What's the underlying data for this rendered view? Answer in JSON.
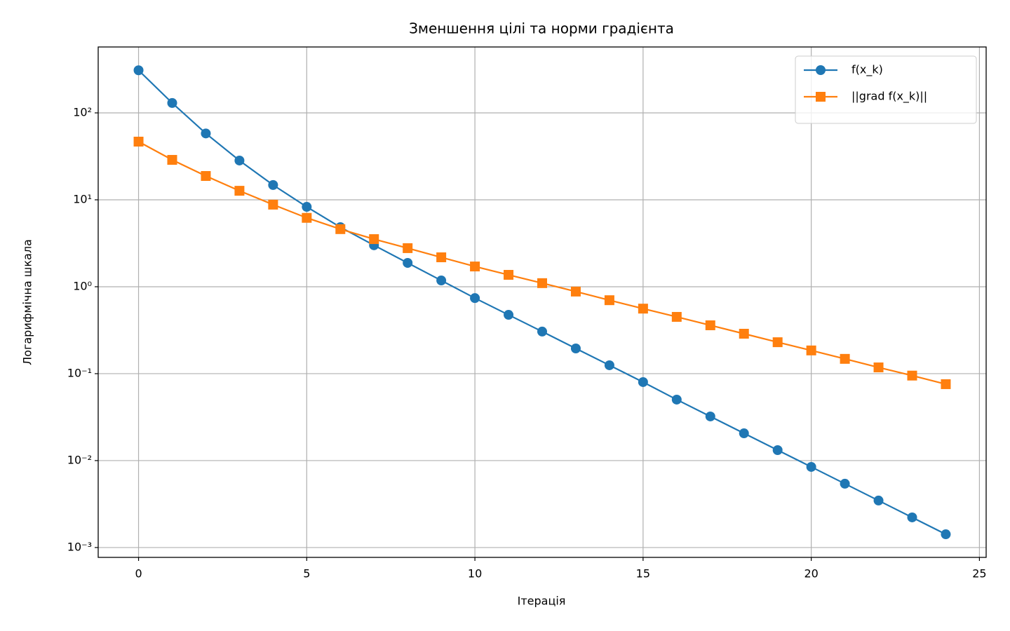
{
  "chart_data": {
    "type": "line",
    "title": "Зменшення цілі та норми градієнта",
    "x_label": "Ітерація",
    "y_label": "Логарифмічна шкала",
    "x": [
      0,
      1,
      2,
      3,
      4,
      5,
      6,
      7,
      8,
      9,
      10,
      11,
      12,
      13,
      14,
      15,
      16,
      17,
      18,
      19,
      20,
      21,
      22,
      23,
      24
    ],
    "series": [
      {
        "name": "f(x_k)",
        "color": "#1f77b4",
        "marker": "circle",
        "values": [
          309,
          130,
          58,
          28.3,
          14.8,
          8.3,
          4.84,
          3.0,
          1.88,
          1.18,
          0.74,
          0.475,
          0.305,
          0.195,
          0.125,
          0.08,
          0.0503,
          0.0322,
          0.0206,
          0.0132,
          0.00846,
          0.00542,
          0.00347,
          0.00222,
          0.00142
        ]
      },
      {
        "name": "||grad f(x_k)||",
        "color": "#ff7f0e",
        "marker": "square",
        "values": [
          46.7,
          28.8,
          18.8,
          12.7,
          8.8,
          6.2,
          4.6,
          3.53,
          2.78,
          2.18,
          1.71,
          1.37,
          1.1,
          0.88,
          0.7,
          0.56,
          0.45,
          0.36,
          0.288,
          0.23,
          0.185,
          0.148,
          0.118,
          0.095,
          0.0757
        ]
      }
    ],
    "xlim": [
      -1.2,
      25.2
    ],
    "xticks": [
      0,
      5,
      10,
      15,
      20,
      25
    ],
    "ylim": [
      0.00077,
      573
    ],
    "y_scale": "log",
    "yticks": [
      {
        "value": 0.001,
        "label": "10⁻³"
      },
      {
        "value": 0.01,
        "label": "10⁻²"
      },
      {
        "value": 0.1,
        "label": "10⁻¹"
      },
      {
        "value": 1,
        "label": "10⁰"
      },
      {
        "value": 10,
        "label": "10¹"
      },
      {
        "value": 100,
        "label": "10²"
      }
    ],
    "grid": true,
    "legend": "upper right"
  }
}
